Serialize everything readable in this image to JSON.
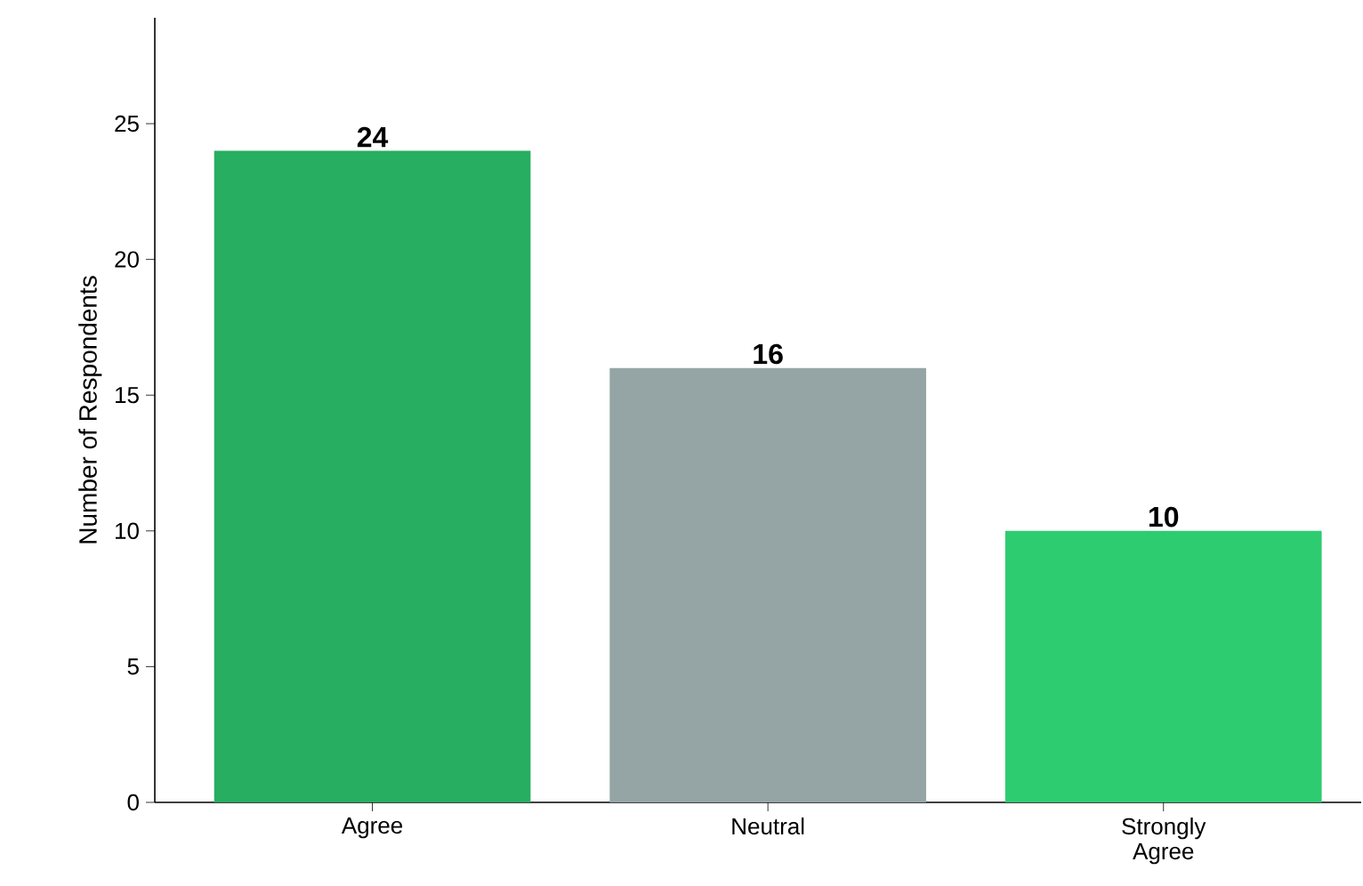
{
  "chart_data": {
    "type": "bar",
    "ylabel": "Number of Respondents",
    "categories": [
      "Agree",
      "Neutral",
      "Strongly Agree"
    ],
    "values": [
      24,
      16,
      10
    ],
    "colors": [
      "#27ae60",
      "#95a5a6",
      "#2ecc71"
    ],
    "ylim": [
      0,
      28.9
    ],
    "yticks": [
      0,
      5,
      10,
      15,
      20,
      25
    ],
    "data_labels": true,
    "grid": false
  }
}
